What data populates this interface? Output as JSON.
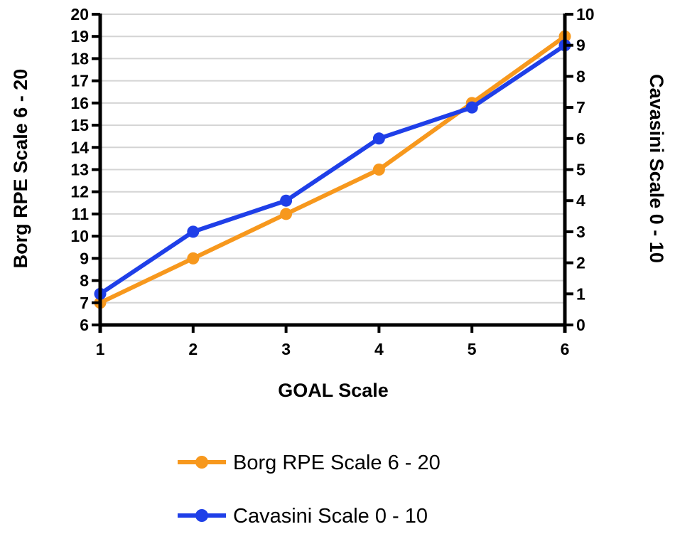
{
  "chart_data": {
    "type": "line",
    "xlabel": "GOAL Scale",
    "ylabel_left": "Borg RPE Scale 6 - 20",
    "ylabel_right": "Cavasini Scale 0 - 10",
    "x": [
      1,
      2,
      3,
      4,
      5,
      6
    ],
    "x_ticks": [
      "1",
      "2",
      "3",
      "4",
      "5",
      "6"
    ],
    "y_left_lim": [
      6,
      20
    ],
    "y_left_ticks": [
      "6",
      "7",
      "8",
      "9",
      "10",
      "11",
      "12",
      "13",
      "14",
      "15",
      "16",
      "17",
      "18",
      "19",
      "20"
    ],
    "y_right_lim": [
      0,
      10
    ],
    "y_right_ticks": [
      "0",
      "1",
      "2",
      "3",
      "4",
      "5",
      "6",
      "7",
      "8",
      "9",
      "10"
    ],
    "grid": true,
    "legend_position": "bottom",
    "series": [
      {
        "name": "Borg RPE Scale 6 - 20",
        "axis": "left",
        "color": "#F7981D",
        "values": [
          7,
          9,
          11,
          13,
          16,
          19
        ]
      },
      {
        "name": "Cavasini Scale 0 - 10",
        "axis": "right",
        "color": "#1F3FE8",
        "values": [
          1,
          3,
          4,
          6,
          7,
          9
        ]
      }
    ]
  }
}
